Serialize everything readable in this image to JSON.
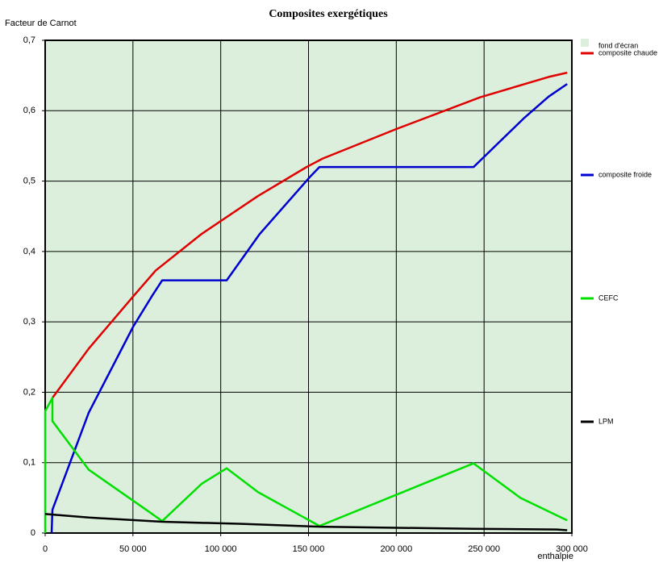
{
  "chart_data": {
    "type": "line",
    "title": "Composites exergétiques",
    "y_label": "Facteur de Carnot",
    "x_label": "enthalpie",
    "background_label": "fond d'écran",
    "background_color": "#dcefdc",
    "grid": true,
    "xlim": [
      0,
      300000
    ],
    "ylim": [
      0,
      0.7
    ],
    "xticks": [
      0,
      {
        "value": 50000,
        "label": "50 000"
      },
      {
        "value": 100000,
        "label": "100 000"
      },
      {
        "value": 150000,
        "label": "150 000"
      },
      {
        "value": 200000,
        "label": "200 000"
      },
      {
        "value": 250000,
        "label": "250 000"
      },
      {
        "value": 300000,
        "label": "300 000"
      }
    ],
    "yticks": [
      0,
      {
        "value": 0.1,
        "label": "0,1"
      },
      {
        "value": 0.2,
        "label": "0,2"
      },
      {
        "value": 0.3,
        "label": "0,3"
      },
      {
        "value": 0.4,
        "label": "0,4"
      },
      {
        "value": 0.5,
        "label": "0,5"
      },
      {
        "value": 0.6,
        "label": "0,6"
      },
      {
        "value": 0.7,
        "label": "0,7"
      }
    ],
    "series": [
      {
        "name": "composite chaude",
        "color": "#e00000",
        "x": [
          4136,
          24817,
          50092,
          62960,
          89154,
          121324,
          148897,
          158088,
          200000,
          247702,
          286765,
          297330
        ],
        "values": [
          0.192,
          0.262,
          0.336,
          0.373,
          0.425,
          0.479,
          0.52,
          0.532,
          0.574,
          0.619,
          0.648,
          0.654
        ]
      },
      {
        "name": "composite froide",
        "color": "#0000d0",
        "x": [
          3676,
          4136,
          24817,
          50092,
          60662,
          66636,
          103400,
          122243,
          151195,
          156250,
          244026,
          272978,
          286765,
          297330
        ],
        "values": [
          0,
          0.033,
          0.171,
          0.293,
          0.336,
          0.359,
          0.359,
          0.425,
          0.507,
          0.52,
          0.52,
          0.59,
          0.62,
          0.638
        ]
      },
      {
        "name": "CEFC",
        "color": "#00e000",
        "x": [
          0,
          0,
          4136,
          4136,
          24817,
          59283,
          66636,
          89154,
          103400,
          121324,
          156250,
          244026,
          270680,
          297330
        ],
        "values": [
          0,
          0.173,
          0.192,
          0.159,
          0.09,
          0.03,
          0.017,
          0.07,
          0.092,
          0.058,
          0.01,
          0.099,
          0.05,
          0.018
        ]
      },
      {
        "name": "LPM",
        "color": "#000000",
        "x": [
          0,
          24817,
          66636,
          112132,
          156250,
          244026,
          291360,
          297330
        ],
        "values": [
          0.027,
          0.022,
          0.016,
          0.013,
          0.009,
          0.006,
          0.005,
          0.004
        ]
      }
    ]
  }
}
